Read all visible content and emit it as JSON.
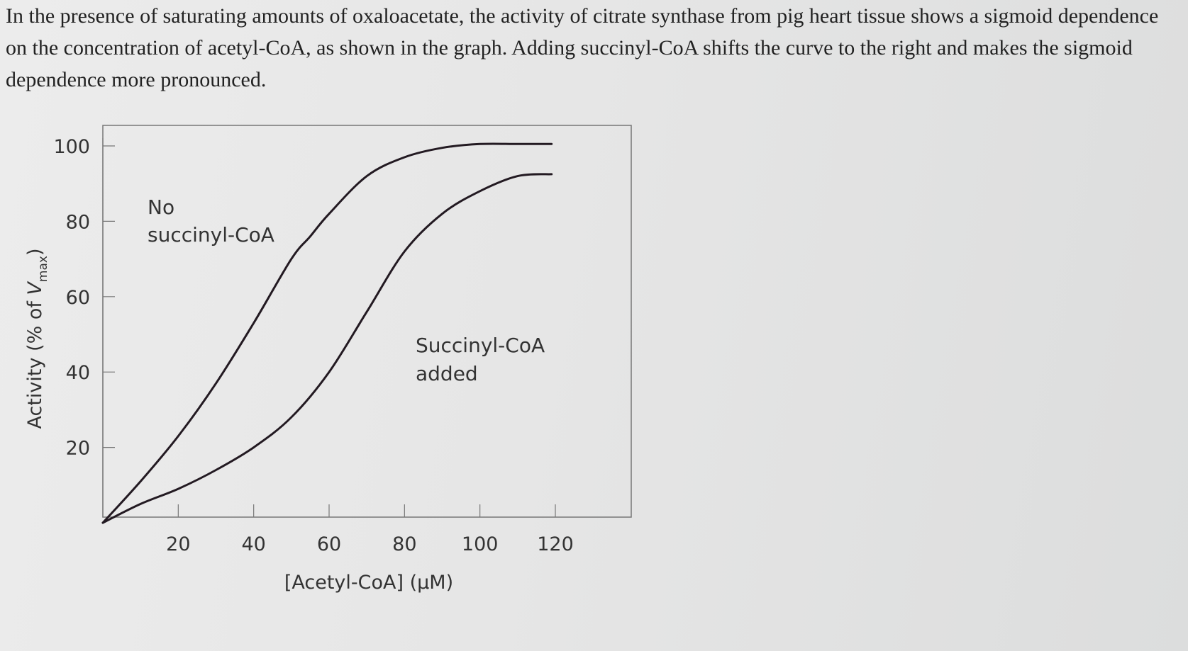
{
  "intro_text": "In the presence of saturating amounts of oxaloacetate, the activity of citrate synthase from pig heart tissue shows a sigmoid dependence on the concentration of acetyl-CoA, as shown in the graph. Adding succinyl-CoA shifts the curve to the right and makes the sigmoid dependence more pronounced.",
  "chart_data": {
    "type": "line",
    "xlabel": "[Acetyl-CoA] (μM)",
    "ylabel": {
      "prefix": "Activity (% of ",
      "var": "V",
      "subscript": "max",
      "suffix": ")"
    },
    "xlim": [
      0,
      120
    ],
    "ylim": [
      0,
      100
    ],
    "xticks": [
      20,
      40,
      60,
      80,
      100,
      120
    ],
    "yticks": [
      20,
      40,
      60,
      80,
      100
    ],
    "grid": false,
    "series": [
      {
        "name": "No succinyl-CoA",
        "label_lines": [
          "No",
          "succinyl-CoA"
        ],
        "x": [
          0,
          10,
          20,
          30,
          40,
          50,
          55,
          60,
          70,
          80,
          90,
          100,
          110,
          119
        ],
        "y": [
          0,
          11,
          23,
          37,
          53,
          70,
          76,
          82,
          92,
          97,
          99.5,
          100.5,
          100.5,
          100.5
        ]
      },
      {
        "name": "Succinyl-CoA added",
        "label_lines": [
          "Succinyl-CoA",
          "added"
        ],
        "x": [
          0,
          10,
          20,
          30,
          40,
          50,
          60,
          70,
          80,
          90,
          100,
          110,
          119
        ],
        "y": [
          0,
          5,
          9,
          14,
          20,
          28,
          40,
          56,
          72,
          82,
          88,
          92,
          92.5
        ]
      }
    ]
  }
}
